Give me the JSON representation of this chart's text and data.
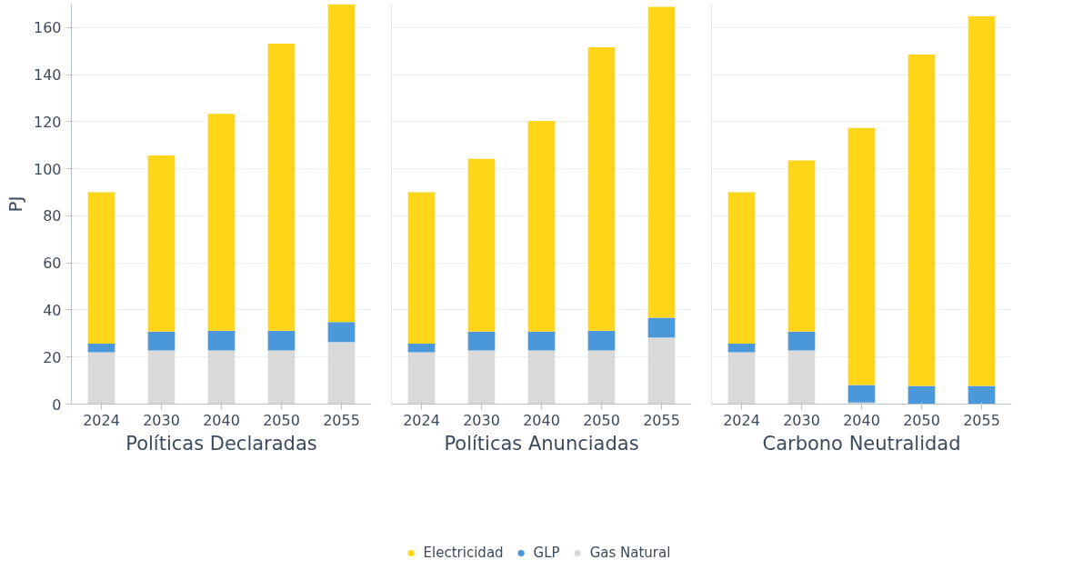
{
  "chart_data": [
    {
      "type": "bar",
      "stacked": true,
      "xlabel": "Políticas Declaradas",
      "ylabel": "PJ",
      "categories": [
        "2024",
        "2030",
        "2040",
        "2050",
        "2055"
      ],
      "ylim": [
        0,
        170
      ],
      "yticks": [
        0,
        20,
        40,
        60,
        80,
        100,
        120,
        140,
        160
      ],
      "grid": "y",
      "series": [
        {
          "color": "#d9d9d9",
          "values": [
            22,
            22.8,
            22.8,
            22.8,
            26.4
          ]
        },
        {
          "color": "#4a97d9",
          "values": [
            3.7,
            8,
            8.4,
            8.4,
            8.5
          ]
        },
        {
          "color": "#ffd517",
          "values": [
            64.3,
            74.9,
            92.1,
            122,
            135
          ]
        }
      ]
    },
    {
      "type": "bar",
      "stacked": true,
      "xlabel": "Políticas Anunciadas",
      "categories": [
        "2024",
        "2030",
        "2040",
        "2050",
        "2055"
      ],
      "ylim": [
        0,
        170
      ],
      "yticks": [
        0,
        20,
        40,
        60,
        80,
        100,
        120,
        140,
        160
      ],
      "grid": "y",
      "tick_labels": "x",
      "legend": "bottom",
      "series": [
        {
          "name": "Gas Natural",
          "color": "#d9d9d9",
          "values": [
            22,
            22.8,
            22.8,
            22.8,
            28.3
          ]
        },
        {
          "name": "GLP",
          "color": "#4a97d9",
          "values": [
            3.7,
            8,
            8,
            8.4,
            8.4
          ]
        },
        {
          "name": "Electricidad",
          "color": "#ffd517",
          "values": [
            64.3,
            73.4,
            89.6,
            120.4,
            132.1
          ]
        }
      ]
    },
    {
      "type": "bar",
      "stacked": true,
      "xlabel": "Carbono Neutralidad",
      "categories": [
        "2024",
        "2030",
        "2040",
        "2050",
        "2055"
      ],
      "ylim": [
        0,
        170
      ],
      "yticks": [
        0,
        20,
        40,
        60,
        80,
        100,
        120,
        140,
        160
      ],
      "grid": "y",
      "tick_labels": "x",
      "series": [
        {
          "color": "#d9d9d9",
          "values": [
            22,
            22.8,
            0.7,
            0,
            0
          ]
        },
        {
          "color": "#4a97d9",
          "values": [
            3.7,
            8,
            7.4,
            7.7,
            7.7
          ]
        },
        {
          "color": "#ffd517",
          "values": [
            64.3,
            72.7,
            109.3,
            140.9,
            157.1
          ]
        }
      ]
    }
  ]
}
